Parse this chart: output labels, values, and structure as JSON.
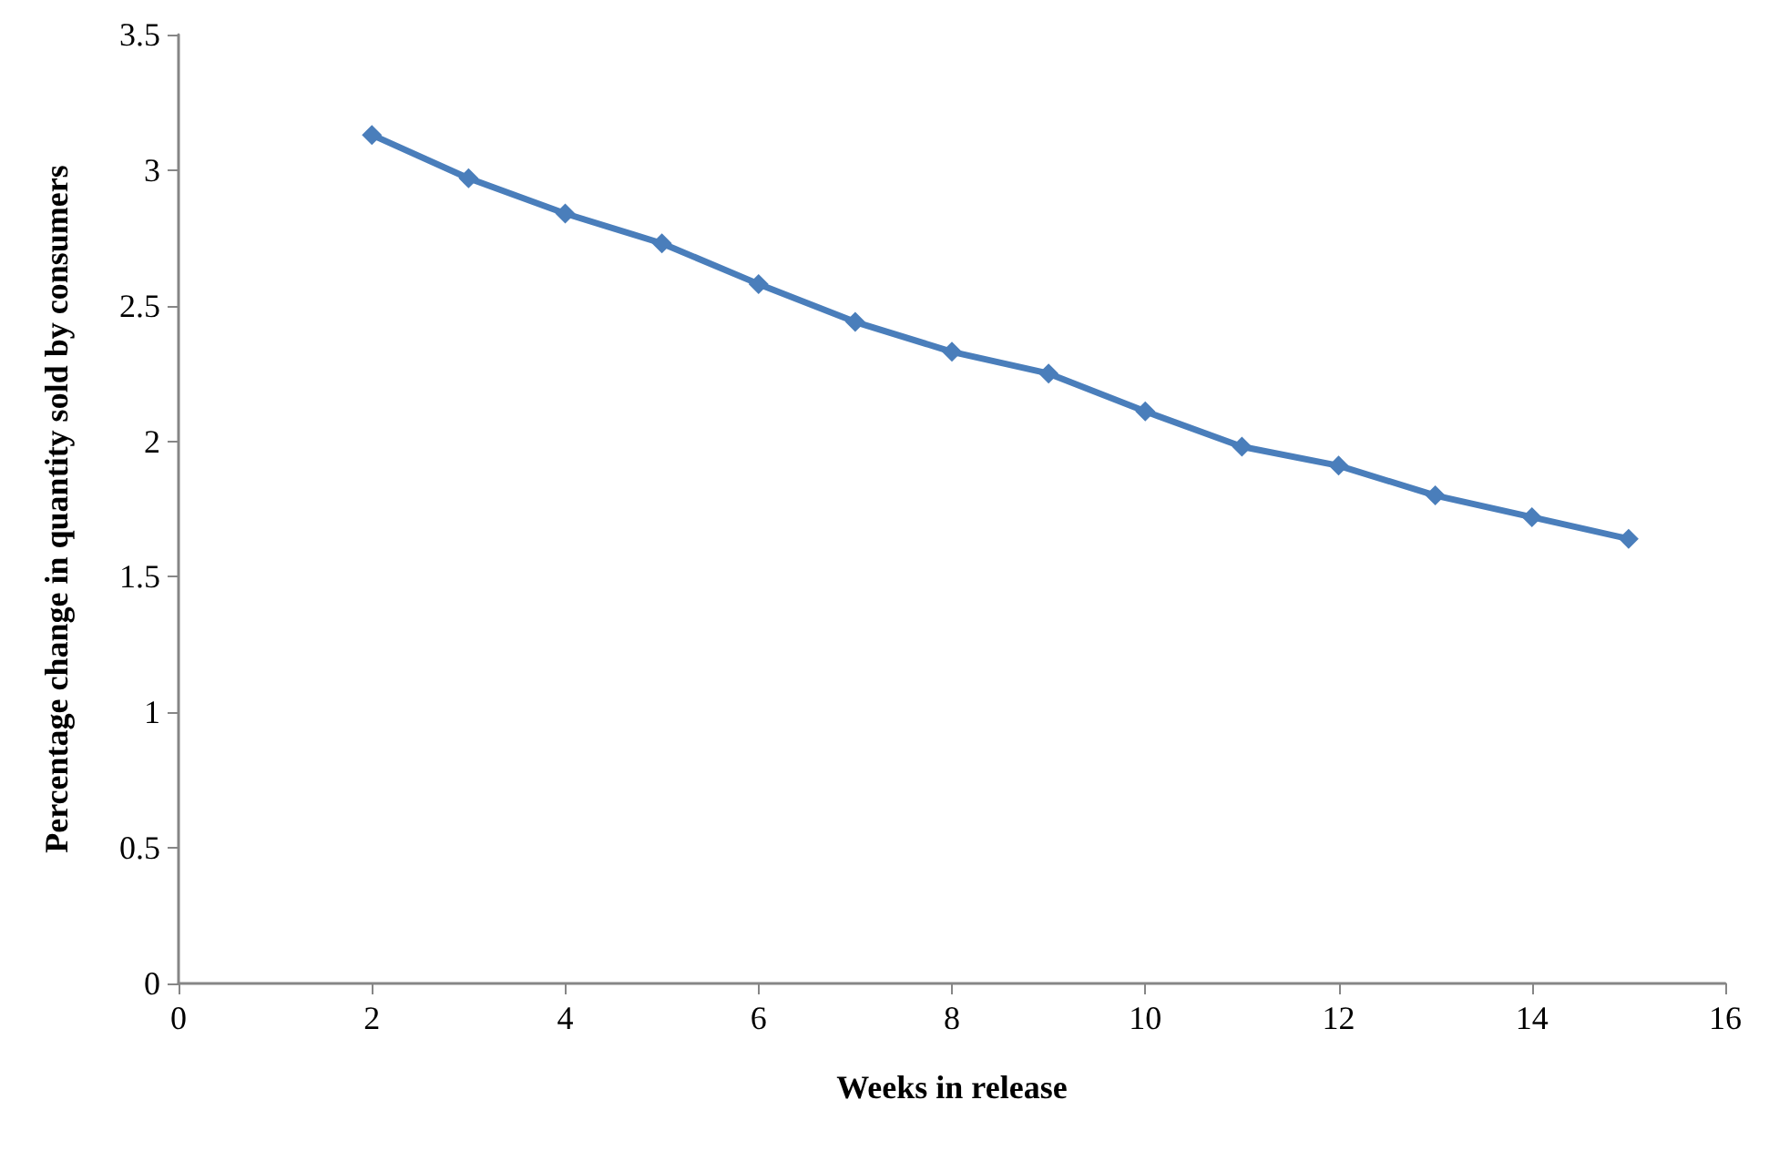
{
  "chart_data": {
    "type": "line",
    "xlabel": "Weeks in release",
    "ylabel": "Percentage change in quantity sold by consumers",
    "x": [
      2,
      3,
      4,
      5,
      6,
      7,
      8,
      9,
      10,
      11,
      12,
      13,
      14,
      15
    ],
    "series": [
      {
        "color": "#4a7ebb",
        "values": [
          3.13,
          2.97,
          2.84,
          2.73,
          2.58,
          2.44,
          2.33,
          2.25,
          2.11,
          1.98,
          1.91,
          1.8,
          1.72,
          1.64
        ]
      }
    ],
    "xlim": [
      0,
      16
    ],
    "xticks": [
      0,
      2,
      4,
      6,
      8,
      10,
      12,
      14,
      16
    ],
    "ylim": [
      0,
      3.5
    ],
    "yticks": [
      0,
      0.5,
      1,
      1.5,
      2,
      2.5,
      3,
      3.5
    ],
    "grid": false,
    "legend": false,
    "marker": "diamond",
    "line_style": "solid"
  }
}
